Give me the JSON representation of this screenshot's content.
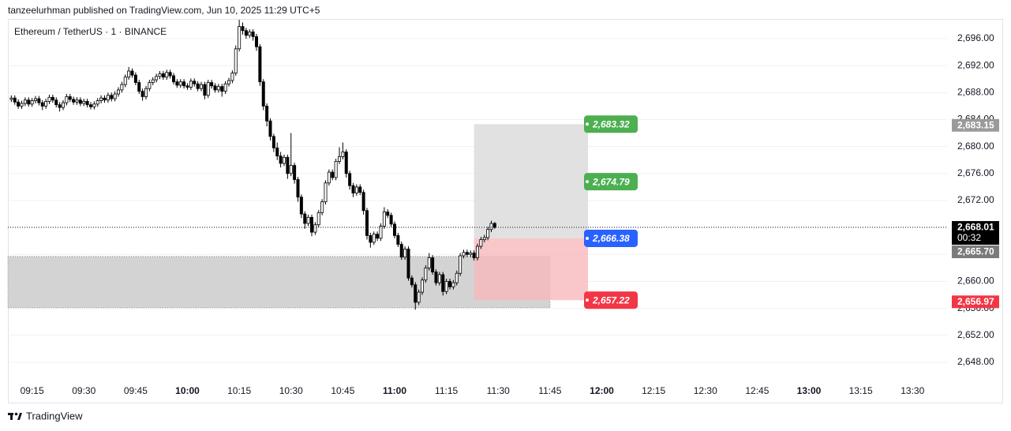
{
  "chart_data": {
    "type": "candlestick",
    "publisher_line": "tanzeelurhman published on TradingView.com, Jun 10, 2025 11:29 UTC+5",
    "title": "Ethereum / TetherUS · 1 · BINANCE",
    "brand": "TradingView",
    "up_color": "#ffffff",
    "down_color": "#000000",
    "grid": true,
    "xlim": [
      "09:08",
      "13:40"
    ],
    "ylim": [
      2645.77,
      2699.63
    ],
    "xticks": [
      "09:15",
      "09:30",
      "09:45",
      "10:00",
      "10:15",
      "10:30",
      "10:45",
      "11:00",
      "11:15",
      "11:30",
      "11:45",
      "12:00",
      "12:15",
      "12:30",
      "12:45",
      "13:00",
      "13:15",
      "13:30"
    ],
    "yticks": [
      {
        "value": 2648,
        "label": "2,648.00"
      },
      {
        "value": 2652,
        "label": "2,652.00"
      },
      {
        "value": 2656,
        "label": "2,656.00"
      },
      {
        "value": 2660,
        "label": "2,660.00"
      },
      {
        "value": 2664,
        "label": "2,664.00"
      },
      {
        "value": 2668,
        "label": "2,668.00"
      },
      {
        "value": 2672,
        "label": "2,672.00"
      },
      {
        "value": 2676,
        "label": "2,676.00"
      },
      {
        "value": 2680,
        "label": "2,680.00"
      },
      {
        "value": 2684,
        "label": "2,684.00"
      },
      {
        "value": 2688,
        "label": "2,688.00"
      },
      {
        "value": 2692,
        "label": "2,692.00"
      },
      {
        "value": 2696,
        "label": "2,696.00"
      }
    ],
    "x": [
      "09:09",
      "09:10",
      "09:11",
      "09:12",
      "09:13",
      "09:14",
      "09:15",
      "09:16",
      "09:17",
      "09:18",
      "09:19",
      "09:20",
      "09:21",
      "09:22",
      "09:23",
      "09:24",
      "09:25",
      "09:26",
      "09:27",
      "09:28",
      "09:29",
      "09:30",
      "09:31",
      "09:32",
      "09:33",
      "09:34",
      "09:35",
      "09:36",
      "09:37",
      "09:38",
      "09:39",
      "09:40",
      "09:41",
      "09:42",
      "09:43",
      "09:44",
      "09:45",
      "09:46",
      "09:47",
      "09:48",
      "09:49",
      "09:50",
      "09:51",
      "09:52",
      "09:53",
      "09:54",
      "09:55",
      "09:56",
      "09:57",
      "09:58",
      "09:59",
      "10:00",
      "10:01",
      "10:02",
      "10:03",
      "10:04",
      "10:05",
      "10:06",
      "10:07",
      "10:08",
      "10:09",
      "10:10",
      "10:11",
      "10:12",
      "10:13",
      "10:14",
      "10:15",
      "10:16",
      "10:17",
      "10:18",
      "10:19",
      "10:20",
      "10:21",
      "10:22",
      "10:23",
      "10:24",
      "10:25",
      "10:26",
      "10:27",
      "10:28",
      "10:29",
      "10:30",
      "10:31",
      "10:32",
      "10:33",
      "10:34",
      "10:35",
      "10:36",
      "10:37",
      "10:38",
      "10:39",
      "10:40",
      "10:41",
      "10:42",
      "10:43",
      "10:44",
      "10:45",
      "10:46",
      "10:47",
      "10:48",
      "10:49",
      "10:50",
      "10:51",
      "10:52",
      "10:53",
      "10:54",
      "10:55",
      "10:56",
      "10:57",
      "10:58",
      "10:59",
      "11:00",
      "11:01",
      "11:02",
      "11:03",
      "11:04",
      "11:05",
      "11:06",
      "11:07",
      "11:08",
      "11:09",
      "11:10",
      "11:11",
      "11:12",
      "11:13",
      "11:14",
      "11:15",
      "11:16",
      "11:17",
      "11:18",
      "11:19",
      "11:20",
      "11:21",
      "11:22",
      "11:23",
      "11:24",
      "11:25",
      "11:26",
      "11:27",
      "11:28",
      "11:29"
    ],
    "ohlc": [
      [
        2687.0,
        2687.6,
        2686.6,
        2687.2
      ],
      [
        2687.2,
        2687.6,
        2686.2,
        2686.6
      ],
      [
        2686.6,
        2687.0,
        2685.6,
        2686.0
      ],
      [
        2686.0,
        2686.8,
        2685.6,
        2686.4
      ],
      [
        2686.4,
        2687.3,
        2686.0,
        2686.9
      ],
      [
        2686.9,
        2687.3,
        2685.9,
        2686.3
      ],
      [
        2686.3,
        2687.2,
        2685.9,
        2686.8
      ],
      [
        2686.8,
        2687.5,
        2686.4,
        2687.1
      ],
      [
        2687.1,
        2687.5,
        2686.1,
        2686.5
      ],
      [
        2686.5,
        2686.9,
        2685.4,
        2686.0
      ],
      [
        2686.0,
        2687.1,
        2685.6,
        2686.7
      ],
      [
        2686.7,
        2687.7,
        2686.3,
        2687.3
      ],
      [
        2687.3,
        2687.7,
        2686.5,
        2686.9
      ],
      [
        2686.9,
        2687.3,
        2685.8,
        2686.2
      ],
      [
        2686.2,
        2686.6,
        2685.2,
        2685.8
      ],
      [
        2685.8,
        2686.9,
        2685.4,
        2686.5
      ],
      [
        2686.5,
        2687.8,
        2686.1,
        2687.4
      ],
      [
        2687.4,
        2687.8,
        2686.6,
        2687.0
      ],
      [
        2687.0,
        2687.4,
        2686.2,
        2686.6
      ],
      [
        2686.6,
        2687.3,
        2686.2,
        2686.9
      ],
      [
        2686.9,
        2687.3,
        2686.0,
        2686.4
      ],
      [
        2686.4,
        2687.1,
        2686.0,
        2686.7
      ],
      [
        2686.7,
        2687.1,
        2685.8,
        2686.2
      ],
      [
        2686.2,
        2686.6,
        2685.5,
        2685.9
      ],
      [
        2685.9,
        2686.7,
        2685.5,
        2686.3
      ],
      [
        2686.3,
        2687.2,
        2685.9,
        2686.8
      ],
      [
        2686.8,
        2687.6,
        2686.4,
        2687.2
      ],
      [
        2687.2,
        2687.6,
        2686.5,
        2686.9
      ],
      [
        2686.9,
        2688.0,
        2686.5,
        2687.6
      ],
      [
        2687.6,
        2688.0,
        2686.7,
        2687.1
      ],
      [
        2687.1,
        2688.2,
        2686.7,
        2687.8
      ],
      [
        2687.8,
        2688.8,
        2687.4,
        2688.4
      ],
      [
        2688.4,
        2689.6,
        2688.0,
        2689.2
      ],
      [
        2689.2,
        2690.7,
        2688.8,
        2690.3
      ],
      [
        2690.3,
        2691.8,
        2689.9,
        2691.2
      ],
      [
        2691.2,
        2691.6,
        2690.2,
        2690.6
      ],
      [
        2690.6,
        2691.0,
        2689.1,
        2689.5
      ],
      [
        2689.5,
        2689.9,
        2687.8,
        2688.2
      ],
      [
        2688.2,
        2688.6,
        2686.8,
        2687.4
      ],
      [
        2687.4,
        2689.0,
        2687.0,
        2688.6
      ],
      [
        2688.6,
        2689.9,
        2688.2,
        2689.5
      ],
      [
        2689.5,
        2690.3,
        2689.1,
        2689.9
      ],
      [
        2689.9,
        2690.8,
        2689.5,
        2690.4
      ],
      [
        2690.4,
        2691.2,
        2690.0,
        2690.8
      ],
      [
        2690.8,
        2691.2,
        2689.9,
        2690.3
      ],
      [
        2690.3,
        2691.4,
        2689.9,
        2691.0
      ],
      [
        2691.0,
        2691.4,
        2690.1,
        2690.5
      ],
      [
        2690.5,
        2690.9,
        2689.2,
        2689.6
      ],
      [
        2689.6,
        2690.0,
        2688.7,
        2689.1
      ],
      [
        2689.1,
        2690.0,
        2688.7,
        2689.6
      ],
      [
        2689.6,
        2690.0,
        2688.6,
        2689.0
      ],
      [
        2689.0,
        2689.4,
        2688.4,
        2688.8
      ],
      [
        2688.8,
        2690.1,
        2688.4,
        2689.7
      ],
      [
        2689.7,
        2690.1,
        2688.9,
        2689.3
      ],
      [
        2689.3,
        2689.7,
        2688.2,
        2688.6
      ],
      [
        2688.6,
        2689.6,
        2688.2,
        2689.2
      ],
      [
        2689.2,
        2689.6,
        2687.0,
        2687.6
      ],
      [
        2687.6,
        2689.9,
        2687.2,
        2689.5
      ],
      [
        2689.5,
        2689.9,
        2688.6,
        2689.0
      ],
      [
        2689.0,
        2689.4,
        2688.0,
        2688.4
      ],
      [
        2688.4,
        2689.3,
        2688.0,
        2688.9
      ],
      [
        2688.9,
        2689.3,
        2687.4,
        2688.2
      ],
      [
        2688.2,
        2689.7,
        2687.8,
        2689.3
      ],
      [
        2689.3,
        2690.2,
        2688.9,
        2689.8
      ],
      [
        2689.8,
        2691.3,
        2689.4,
        2690.9
      ],
      [
        2690.9,
        2695.0,
        2690.5,
        2694.5
      ],
      [
        2694.5,
        2698.8,
        2694.1,
        2697.8
      ],
      [
        2697.8,
        2698.4,
        2696.6,
        2697.2
      ],
      [
        2697.2,
        2697.6,
        2696.0,
        2696.5
      ],
      [
        2696.5,
        2697.4,
        2696.1,
        2697.0
      ],
      [
        2697.0,
        2697.4,
        2695.7,
        2696.3
      ],
      [
        2696.3,
        2696.7,
        2694.2,
        2694.8
      ],
      [
        2694.8,
        2695.2,
        2689.0,
        2689.6
      ],
      [
        2689.6,
        2690.0,
        2685.4,
        2686.0
      ],
      [
        2686.0,
        2686.4,
        2683.0,
        2683.8
      ],
      [
        2683.8,
        2684.2,
        2680.9,
        2681.5
      ],
      [
        2681.5,
        2681.9,
        2679.2,
        2679.8
      ],
      [
        2679.8,
        2680.6,
        2678.0,
        2678.6
      ],
      [
        2678.6,
        2679.2,
        2676.9,
        2677.5
      ],
      [
        2677.5,
        2678.8,
        2677.1,
        2678.4
      ],
      [
        2678.4,
        2678.8,
        2675.2,
        2676.0
      ],
      [
        2676.0,
        2682.0,
        2675.6,
        2677.2
      ],
      [
        2677.2,
        2677.6,
        2674.5,
        2675.1
      ],
      [
        2675.1,
        2675.5,
        2671.8,
        2672.5
      ],
      [
        2672.5,
        2672.9,
        2669.4,
        2670.0
      ],
      [
        2670.0,
        2670.4,
        2667.8,
        2668.6
      ],
      [
        2668.6,
        2669.9,
        2668.2,
        2669.5
      ],
      [
        2669.5,
        2669.9,
        2666.7,
        2667.3
      ],
      [
        2667.3,
        2668.8,
        2666.9,
        2668.4
      ],
      [
        2668.4,
        2670.6,
        2668.0,
        2670.2
      ],
      [
        2670.2,
        2672.2,
        2669.8,
        2671.8
      ],
      [
        2671.8,
        2675.0,
        2671.4,
        2674.6
      ],
      [
        2674.6,
        2676.6,
        2674.2,
        2676.2
      ],
      [
        2676.2,
        2676.6,
        2675.0,
        2675.4
      ],
      [
        2675.4,
        2678.2,
        2675.0,
        2677.8
      ],
      [
        2677.8,
        2679.9,
        2677.4,
        2678.5
      ],
      [
        2678.5,
        2680.6,
        2678.1,
        2679.2
      ],
      [
        2679.2,
        2679.6,
        2675.4,
        2676.0
      ],
      [
        2676.0,
        2676.4,
        2673.6,
        2674.2
      ],
      [
        2674.2,
        2674.6,
        2672.5,
        2673.1
      ],
      [
        2673.1,
        2674.4,
        2672.7,
        2674.0
      ],
      [
        2674.0,
        2674.4,
        2672.8,
        2673.2
      ],
      [
        2673.2,
        2673.6,
        2669.9,
        2670.5
      ],
      [
        2670.5,
        2670.9,
        2666.2,
        2666.8
      ],
      [
        2666.8,
        2667.2,
        2665.0,
        2665.8
      ],
      [
        2665.8,
        2667.4,
        2665.4,
        2667.0
      ],
      [
        2667.0,
        2667.4,
        2666.0,
        2666.4
      ],
      [
        2666.4,
        2668.6,
        2666.0,
        2668.2
      ],
      [
        2668.2,
        2671.0,
        2667.8,
        2670.3
      ],
      [
        2670.3,
        2670.7,
        2669.4,
        2669.8
      ],
      [
        2669.8,
        2670.2,
        2668.1,
        2668.5
      ],
      [
        2668.5,
        2668.9,
        2666.4,
        2666.8
      ],
      [
        2666.8,
        2667.2,
        2665.1,
        2665.5
      ],
      [
        2665.5,
        2665.9,
        2663.2,
        2663.6
      ],
      [
        2663.6,
        2665.2,
        2663.2,
        2664.8
      ],
      [
        2664.8,
        2665.2,
        2660.1,
        2660.5
      ],
      [
        2660.5,
        2660.9,
        2659.1,
        2659.5
      ],
      [
        2659.5,
        2659.9,
        2655.8,
        2656.9
      ],
      [
        2656.9,
        2658.8,
        2656.5,
        2658.4
      ],
      [
        2658.4,
        2660.6,
        2658.0,
        2660.2
      ],
      [
        2660.2,
        2662.4,
        2659.8,
        2662.0
      ],
      [
        2662.0,
        2664.2,
        2661.6,
        2663.5
      ],
      [
        2663.5,
        2663.9,
        2661.0,
        2661.4
      ],
      [
        2661.4,
        2661.8,
        2659.4,
        2659.8
      ],
      [
        2659.8,
        2661.4,
        2659.4,
        2661.0
      ],
      [
        2661.0,
        2661.4,
        2657.9,
        2658.5
      ],
      [
        2658.5,
        2660.4,
        2658.1,
        2660.0
      ],
      [
        2660.0,
        2660.4,
        2658.8,
        2659.2
      ],
      [
        2659.2,
        2660.2,
        2658.8,
        2659.8
      ],
      [
        2659.8,
        2661.6,
        2659.4,
        2661.2
      ],
      [
        2661.2,
        2664.2,
        2660.8,
        2663.8
      ],
      [
        2663.8,
        2664.7,
        2663.4,
        2664.3
      ],
      [
        2664.3,
        2664.7,
        2663.6,
        2664.0
      ],
      [
        2664.0,
        2664.6,
        2663.6,
        2664.2
      ],
      [
        2664.2,
        2664.6,
        2663.1,
        2663.5
      ],
      [
        2663.5,
        2665.6,
        2663.1,
        2665.2
      ],
      [
        2665.2,
        2666.6,
        2664.8,
        2666.2
      ],
      [
        2666.2,
        2666.9,
        2665.8,
        2666.5
      ],
      [
        2666.5,
        2668.1,
        2666.1,
        2667.7
      ],
      [
        2667.7,
        2669.0,
        2667.3,
        2668.6
      ],
      [
        2668.6,
        2668.8,
        2667.8,
        2668.01
      ]
    ],
    "zone": {
      "from": "09:08",
      "to": "11:45",
      "top": 2663.7,
      "bottom": 2656.1,
      "color": "#d1d1d1"
    },
    "position": {
      "from": "11:23",
      "to": "11:56",
      "profit_color": "#dcdcdc",
      "loss_color": "#f7b9bd",
      "levels": [
        {
          "value": 2683.32,
          "label": "2,683.32",
          "color": "#4caf50"
        },
        {
          "value": 2674.79,
          "label": "2,674.79",
          "color": "#4caf50"
        },
        {
          "value": 2666.38,
          "label": "2,666.38",
          "color": "#2962ff"
        },
        {
          "value": 2657.22,
          "label": "2,657.22",
          "color": "#f23645"
        }
      ]
    },
    "price_labels": [
      {
        "value": 2683.15,
        "label": "2,683.15",
        "color": "#9a9a9a"
      },
      {
        "value": 2668.01,
        "label": "2,668.01",
        "color": "#000000",
        "countdown": "00:32"
      },
      {
        "value": 2665.7,
        "label": "2,665.70",
        "color": "#7a7a7a"
      },
      {
        "value": 2656.97,
        "label": "2,656.97",
        "color": "#f23645"
      }
    ]
  }
}
